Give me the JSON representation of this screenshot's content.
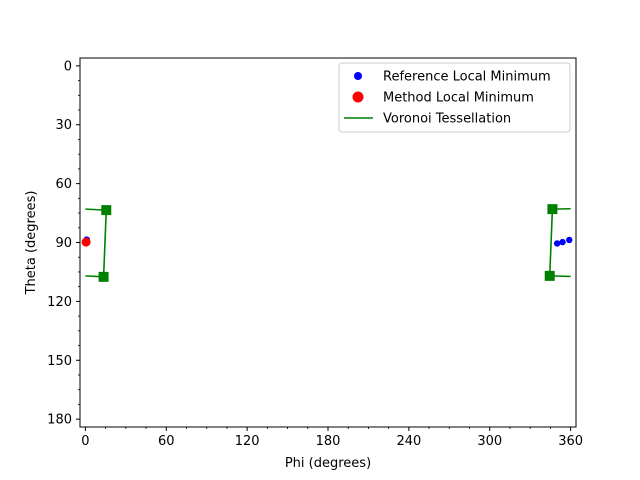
{
  "chart_data": {
    "type": "scatter",
    "xlabel": "Phi (degrees)",
    "ylabel": "Theta (degrees)",
    "xlim": [
      -4,
      364
    ],
    "ylim": [
      184,
      -4
    ],
    "y_inverted": true,
    "xticks": [
      0,
      60,
      120,
      180,
      240,
      300,
      360
    ],
    "yticks": [
      0,
      30,
      60,
      90,
      120,
      150,
      180
    ],
    "x_minor_step": 15,
    "y_minor_step": 7.5,
    "grid": false,
    "legend_position": "top-right",
    "legend": [
      {
        "label": "Reference Local Minimum",
        "marker": "dot",
        "color": "#0000ff"
      },
      {
        "label": "Method Local Minimum",
        "marker": "dot-large",
        "color": "#ff0000"
      },
      {
        "label": "Voronoi Tessellation",
        "marker": "line",
        "color": "#008000"
      }
    ],
    "series": [
      {
        "name": "Reference Local Minimum",
        "kind": "scatter",
        "color": "#0000ff",
        "points": [
          [
            1,
            88.5
          ],
          [
            350,
            90.5
          ],
          [
            354,
            89.8
          ],
          [
            359,
            88.7
          ]
        ]
      },
      {
        "name": "Method Local Minimum",
        "kind": "scatter",
        "color": "#ff0000",
        "points": [
          [
            0.5,
            89.8
          ]
        ]
      },
      {
        "name": "Voronoi Tessellation",
        "kind": "line",
        "color": "#008000",
        "segments": [
          [
            [
              15.5,
              73.5
            ],
            [
              13.5,
              107.5
            ]
          ],
          [
            [
              15.5,
              73.5
            ],
            [
              0,
              73
            ]
          ],
          [
            [
              13.5,
              107.5
            ],
            [
              0,
              107
            ]
          ],
          [
            [
              346.5,
              73
            ],
            [
              344.5,
              107
            ]
          ],
          [
            [
              346.5,
              73
            ],
            [
              360,
              72.8
            ]
          ],
          [
            [
              344.5,
              107
            ],
            [
              360,
              107.3
            ]
          ]
        ],
        "vertices": [
          [
            15.5,
            73.5
          ],
          [
            13.5,
            107.5
          ],
          [
            346.5,
            73
          ],
          [
            344.5,
            107
          ]
        ]
      }
    ]
  }
}
